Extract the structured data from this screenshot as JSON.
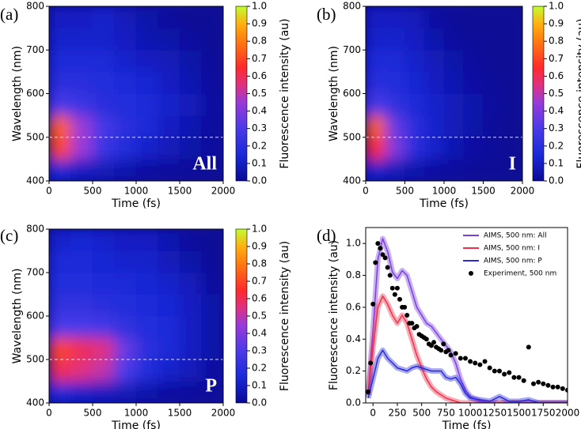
{
  "chart_data": [
    {
      "type": "heatmap",
      "panel_label": "(a)",
      "annotation": "All",
      "x_label": "Time (fs)",
      "y_label": "Wavelength (nm)",
      "colorbar_label": "Fluorescence intensity (au)",
      "xlim": [
        0,
        2000
      ],
      "ylim": [
        400,
        800
      ],
      "xticks": [
        0,
        500,
        1000,
        1500,
        2000
      ],
      "yticks": [
        400,
        500,
        600,
        700,
        800
      ],
      "clim": [
        0,
        1
      ],
      "cticks": [
        {
          "value": 0,
          "label": "0.0"
        },
        {
          "value": 0.1,
          "label": "0.1"
        },
        {
          "value": 0.2,
          "label": "0.2"
        },
        {
          "value": 0.3,
          "label": "0.3"
        },
        {
          "value": 0.4,
          "label": "0.4"
        },
        {
          "value": 0.5,
          "label": "0.5"
        },
        {
          "value": 0.6,
          "label": "0.6"
        },
        {
          "value": 0.7,
          "label": "0.7"
        },
        {
          "value": 0.8,
          "label": "0.8"
        },
        {
          "value": 0.9,
          "label": "0.9"
        },
        {
          "value": 1,
          "label": "1.0"
        }
      ],
      "colorscale": [
        [
          0,
          "#0a0a96"
        ],
        [
          0.15,
          "#1a2ad8"
        ],
        [
          0.3,
          "#4a3ae8"
        ],
        [
          0.45,
          "#9a3ad8"
        ],
        [
          0.55,
          "#e03080"
        ],
        [
          0.65,
          "#ff2a2a"
        ],
        [
          0.8,
          "#ff7a10"
        ],
        [
          0.9,
          "#ffb010"
        ],
        [
          1,
          "#c0ff30"
        ]
      ],
      "hline": 500,
      "xbins": [
        0,
        250,
        500,
        750,
        1000,
        1250,
        1500,
        1750,
        2000
      ],
      "ybins": [
        400,
        450,
        500,
        550,
        600,
        650,
        700,
        750,
        800
      ],
      "z": [
        [
          0.15,
          0.1,
          0.08,
          0.05,
          0.03,
          0.02,
          0.01,
          0
        ],
        [
          0.7,
          0.45,
          0.25,
          0.18,
          0.12,
          0.08,
          0.04,
          0.02
        ],
        [
          0.75,
          0.45,
          0.28,
          0.2,
          0.15,
          0.1,
          0.06,
          0.02
        ],
        [
          0.3,
          0.25,
          0.2,
          0.18,
          0.15,
          0.12,
          0.08,
          0.03
        ],
        [
          0.2,
          0.2,
          0.18,
          0.16,
          0.14,
          0.1,
          0.06,
          0.02
        ],
        [
          0.15,
          0.15,
          0.15,
          0.12,
          0.1,
          0.08,
          0.04,
          0.01
        ],
        [
          0.12,
          0.12,
          0.12,
          0.1,
          0.06,
          0.04,
          0.02,
          0
        ],
        [
          0.1,
          0.1,
          0.12,
          0.08,
          0.04,
          0.02,
          0,
          0
        ]
      ]
    },
    {
      "type": "heatmap",
      "panel_label": "(b)",
      "annotation": "I",
      "x_label": "Time (fs)",
      "y_label": "Wavelength (nm)",
      "colorbar_label": "Fluorescence intensity (au)",
      "xlim": [
        0,
        2000
      ],
      "ylim": [
        400,
        800
      ],
      "xticks": [
        0,
        500,
        1000,
        1500,
        2000
      ],
      "yticks": [
        400,
        500,
        600,
        700,
        800
      ],
      "clim": [
        0,
        1
      ],
      "cticks": [
        {
          "value": 0,
          "label": "0.0"
        },
        {
          "value": 0.1,
          "label": "0.1"
        },
        {
          "value": 0.2,
          "label": "0.2"
        },
        {
          "value": 0.3,
          "label": "0.3"
        },
        {
          "value": 0.4,
          "label": "0.4"
        },
        {
          "value": 0.5,
          "label": "0.5"
        },
        {
          "value": 0.6,
          "label": "0.6"
        },
        {
          "value": 0.7,
          "label": "0.7"
        },
        {
          "value": 0.8,
          "label": "0.8"
        },
        {
          "value": 0.9,
          "label": "0.9"
        },
        {
          "value": 1,
          "label": "1.0"
        }
      ],
      "colorscale": [
        [
          0,
          "#0a0a96"
        ],
        [
          0.15,
          "#1a2ad8"
        ],
        [
          0.3,
          "#4a3ae8"
        ],
        [
          0.45,
          "#9a3ad8"
        ],
        [
          0.55,
          "#e03080"
        ],
        [
          0.65,
          "#ff2a2a"
        ],
        [
          0.8,
          "#ff7a10"
        ],
        [
          0.9,
          "#ffb010"
        ],
        [
          1,
          "#c0ff30"
        ]
      ],
      "hline": 500,
      "xbins": [
        0,
        250,
        500,
        750,
        1000,
        1250,
        1500,
        1750,
        2000
      ],
      "ybins": [
        400,
        450,
        500,
        550,
        600,
        650,
        700,
        750,
        800
      ],
      "z": [
        [
          0.12,
          0.08,
          0.05,
          0.03,
          0.02,
          0.01,
          0,
          0
        ],
        [
          0.65,
          0.4,
          0.2,
          0.12,
          0.06,
          0.03,
          0.01,
          0
        ],
        [
          0.75,
          0.35,
          0.2,
          0.12,
          0.08,
          0.04,
          0.01,
          0
        ],
        [
          0.3,
          0.22,
          0.15,
          0.12,
          0.08,
          0.05,
          0.02,
          0
        ],
        [
          0.2,
          0.18,
          0.14,
          0.1,
          0.06,
          0.03,
          0.01,
          0
        ],
        [
          0.16,
          0.15,
          0.12,
          0.08,
          0.04,
          0.02,
          0,
          0
        ],
        [
          0.12,
          0.12,
          0.1,
          0.05,
          0.02,
          0.01,
          0,
          0
        ],
        [
          0.1,
          0.1,
          0.08,
          0.03,
          0.01,
          0,
          0,
          0
        ]
      ]
    },
    {
      "type": "heatmap",
      "panel_label": "(c)",
      "annotation": "P",
      "x_label": "Time (fs)",
      "y_label": "Wavelength (nm)",
      "colorbar_label": "Fluorescence intensity (au)",
      "xlim": [
        0,
        2000
      ],
      "ylim": [
        400,
        800
      ],
      "xticks": [
        0,
        500,
        1000,
        1500,
        2000
      ],
      "yticks": [
        400,
        500,
        600,
        700,
        800
      ],
      "clim": [
        0,
        1
      ],
      "cticks": [
        {
          "value": 0,
          "label": "0.0"
        },
        {
          "value": 0.1,
          "label": "0.1"
        },
        {
          "value": 0.2,
          "label": "0.2"
        },
        {
          "value": 0.3,
          "label": "0.3"
        },
        {
          "value": 0.4,
          "label": "0.4"
        },
        {
          "value": 0.5,
          "label": "0.5"
        },
        {
          "value": 0.6,
          "label": "0.6"
        },
        {
          "value": 0.7,
          "label": "0.7"
        },
        {
          "value": 0.8,
          "label": "0.8"
        },
        {
          "value": 0.9,
          "label": "0.9"
        },
        {
          "value": 1,
          "label": "1.0"
        }
      ],
      "colorscale": [
        [
          0,
          "#0a0a96"
        ],
        [
          0.15,
          "#1a2ad8"
        ],
        [
          0.3,
          "#4a3ae8"
        ],
        [
          0.45,
          "#9a3ad8"
        ],
        [
          0.55,
          "#e03080"
        ],
        [
          0.65,
          "#ff2a2a"
        ],
        [
          0.8,
          "#ff7a10"
        ],
        [
          0.9,
          "#ffb010"
        ],
        [
          1,
          "#c0ff30"
        ]
      ],
      "hline": 500,
      "xbins": [
        0,
        250,
        500,
        750,
        1000,
        1250,
        1500,
        1750,
        2000
      ],
      "ybins": [
        400,
        450,
        500,
        550,
        600,
        650,
        700,
        750,
        800
      ],
      "z": [
        [
          0.15,
          0.12,
          0.1,
          0.08,
          0.05,
          0.03,
          0.02,
          0.01
        ],
        [
          0.6,
          0.55,
          0.5,
          0.3,
          0.18,
          0.12,
          0.08,
          0.03
        ],
        [
          0.7,
          0.6,
          0.55,
          0.35,
          0.2,
          0.15,
          0.1,
          0.04
        ],
        [
          0.3,
          0.3,
          0.28,
          0.22,
          0.18,
          0.15,
          0.1,
          0.04
        ],
        [
          0.22,
          0.22,
          0.2,
          0.18,
          0.16,
          0.14,
          0.1,
          0.04
        ],
        [
          0.18,
          0.18,
          0.16,
          0.15,
          0.14,
          0.12,
          0.08,
          0.02
        ],
        [
          0.15,
          0.15,
          0.14,
          0.12,
          0.12,
          0.08,
          0.04,
          0.01
        ],
        [
          0.12,
          0.14,
          0.12,
          0.1,
          0.1,
          0.06,
          0.02,
          0
        ]
      ]
    },
    {
      "type": "line",
      "panel_label": "(d)",
      "x_label": "Time (fs)",
      "y_label": "Fluorescence intensity (au)",
      "xlim": [
        -75,
        2000
      ],
      "ylim": [
        0,
        1.1
      ],
      "xticks": [
        0,
        250,
        500,
        750,
        1000,
        1250,
        1500,
        1750,
        2000
      ],
      "yticks": [
        {
          "value": 0,
          "label": "0.0"
        },
        {
          "value": 0.2,
          "label": "0.2"
        },
        {
          "value": 0.4,
          "label": "0.4"
        },
        {
          "value": 0.6,
          "label": "0.6"
        },
        {
          "value": 0.8,
          "label": "0.8"
        },
        {
          "value": 1,
          "label": "1.0"
        }
      ],
      "legend": "upper right",
      "x": [
        -50,
        0,
        50,
        100,
        150,
        200,
        250,
        300,
        350,
        400,
        450,
        500,
        550,
        600,
        650,
        700,
        750,
        800,
        850,
        900,
        950,
        1000,
        1100,
        1200,
        1300,
        1400,
        1500,
        1600,
        1700,
        1800,
        1900,
        2000
      ],
      "series": [
        {
          "name": "AIMS, 500 nm: All",
          "color": "#7b3fe0",
          "values": [
            0.05,
            0.45,
            0.9,
            1.03,
            0.95,
            0.82,
            0.78,
            0.83,
            0.8,
            0.7,
            0.6,
            0.55,
            0.5,
            0.48,
            0.44,
            0.4,
            0.36,
            0.32,
            0.25,
            0.15,
            0.08,
            0.04,
            0.01,
            0,
            0,
            0,
            0,
            0,
            0,
            0,
            0,
            0
          ]
        },
        {
          "name": "AIMS, 500 nm: I",
          "color": "#f0304a",
          "values": [
            0.05,
            0.35,
            0.6,
            0.67,
            0.62,
            0.55,
            0.5,
            0.55,
            0.5,
            0.4,
            0.3,
            0.22,
            0.15,
            0.1,
            0.07,
            0.05,
            0.03,
            0.02,
            0.01,
            0,
            0,
            0,
            0,
            0,
            0,
            0,
            0,
            0,
            0,
            0,
            0,
            0
          ]
        },
        {
          "name": "AIMS, 500 nm: P",
          "color": "#2a2ad8",
          "values": [
            0.03,
            0.15,
            0.28,
            0.33,
            0.28,
            0.25,
            0.22,
            0.21,
            0.2,
            0.22,
            0.23,
            0.22,
            0.21,
            0.2,
            0.2,
            0.2,
            0.16,
            0.15,
            0.16,
            0.12,
            0.06,
            0.03,
            0.02,
            0.01,
            0.04,
            0.01,
            0.01,
            0.02,
            0,
            0,
            0,
            0
          ]
        },
        {
          "name": "Experiment, 500 nm",
          "color": "#000000",
          "type": "scatter",
          "x": [
            -50,
            -25,
            0,
            25,
            50,
            75,
            100,
            125,
            150,
            175,
            200,
            225,
            250,
            275,
            300,
            325,
            350,
            375,
            400,
            425,
            450,
            475,
            500,
            525,
            550,
            575,
            600,
            625,
            650,
            675,
            700,
            725,
            750,
            775,
            800,
            850,
            900,
            950,
            1000,
            1050,
            1100,
            1150,
            1200,
            1250,
            1300,
            1350,
            1400,
            1450,
            1500,
            1550,
            1600,
            1650,
            1700,
            1750,
            1800,
            1850,
            1900,
            1950,
            2000
          ],
          "values": [
            0.07,
            0.25,
            0.62,
            0.88,
            1,
            0.97,
            0.93,
            0.91,
            0.85,
            0.8,
            0.72,
            0.68,
            0.72,
            0.65,
            0.6,
            0.6,
            0.55,
            0.5,
            0.5,
            0.47,
            0.48,
            0.43,
            0.42,
            0.41,
            0.4,
            0.37,
            0.36,
            0.38,
            0.35,
            0.34,
            0.33,
            0.37,
            0.32,
            0.33,
            0.3,
            0.31,
            0.28,
            0.28,
            0.26,
            0.25,
            0.24,
            0.26,
            0.22,
            0.2,
            0.2,
            0.18,
            0.19,
            0.16,
            0.16,
            0.14,
            0.35,
            0.12,
            0.13,
            0.12,
            0.11,
            0.1,
            0.1,
            0.09,
            0.08
          ]
        }
      ]
    }
  ]
}
